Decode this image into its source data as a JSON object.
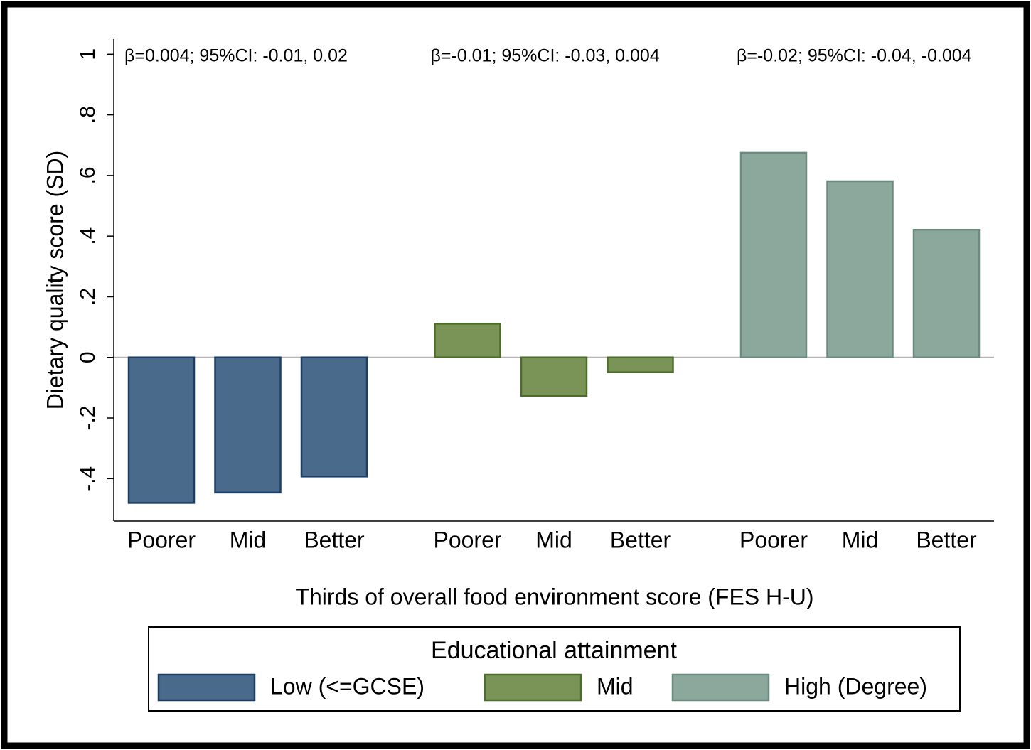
{
  "chart_data": {
    "type": "bar",
    "x_label": "Thirds of overall food environment score (FES H-U)",
    "y_label": "Dietary quality score (SD)",
    "categories": [
      "Poorer",
      "Mid",
      "Better"
    ],
    "series": [
      {
        "name": "Low (<=GCSE)",
        "color": "#496a8a",
        "edge": "#1c3d63",
        "values": [
          -0.48,
          -0.446,
          -0.393
        ]
      },
      {
        "name": "Mid",
        "color": "#7a9457",
        "edge": "#4c6c2c",
        "values": [
          0.111,
          -0.127,
          -0.049
        ]
      },
      {
        "name": "High (Degree)",
        "color": "#8ca79c",
        "edge": "#6b8b80",
        "values": [
          0.675,
          0.581,
          0.421
        ]
      }
    ],
    "annotations": [
      "β=0.004; 95%CI: -0.01, 0.02",
      "β=-0.01; 95%CI: -0.03, 0.004",
      "β=-0.02; 95%CI: -0.04, -0.004"
    ],
    "ylim": [
      -0.54,
      1.05
    ],
    "yticks": [
      {
        "value": -0.4,
        "label": "-.4"
      },
      {
        "value": -0.2,
        "label": "-.2"
      },
      0,
      {
        "value": 0.2,
        "label": ".2"
      },
      {
        "value": 0.4,
        "label": ".4"
      },
      {
        "value": 0.6,
        "label": ".6"
      },
      {
        "value": 0.8,
        "label": ".8"
      },
      1
    ],
    "yline": 0,
    "legend_title": "Educational attainment",
    "legend_position": "bottom"
  }
}
